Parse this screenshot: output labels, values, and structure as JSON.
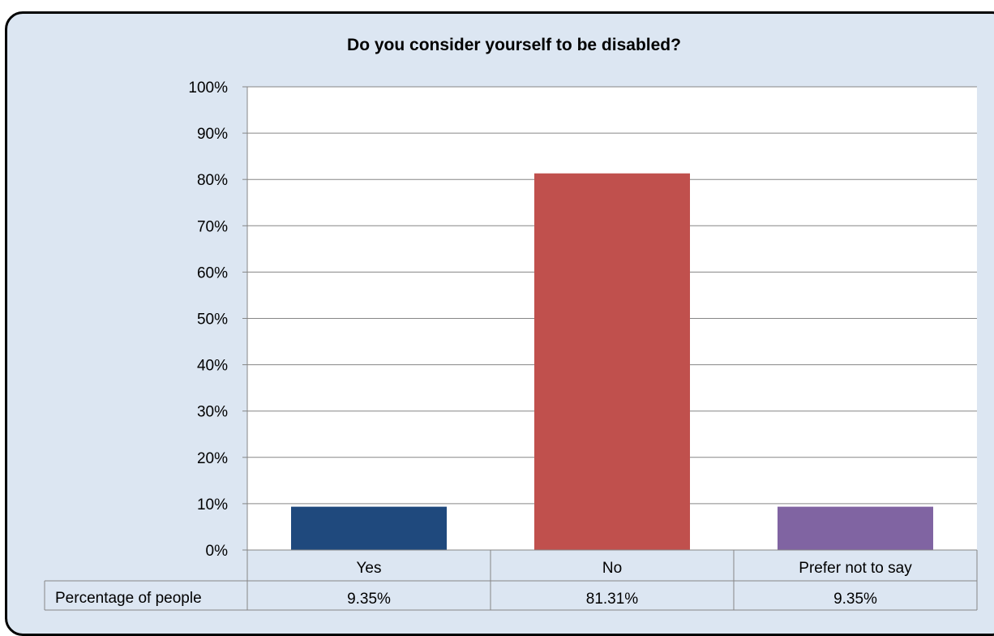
{
  "page_fragment": "(top edge text cut off)",
  "chart_data": {
    "type": "bar",
    "title": "Do you consider yourself to be disabled?",
    "categories": [
      "Yes",
      "No",
      "Prefer not to say"
    ],
    "values": [
      9.35,
      81.31,
      9.35
    ],
    "value_labels": [
      "9.35%",
      "81.31%",
      "9.35%"
    ],
    "series_name": "Percentage of people",
    "bar_colors": [
      "#1f497d",
      "#c0504d",
      "#8064a2"
    ],
    "ylim": [
      0,
      100
    ],
    "yticks": [
      "0%",
      "10%",
      "20%",
      "30%",
      "40%",
      "50%",
      "60%",
      "70%",
      "80%",
      "90%",
      "100%"
    ],
    "grid": true,
    "data_table": true,
    "background_color": "#dce6f2"
  }
}
